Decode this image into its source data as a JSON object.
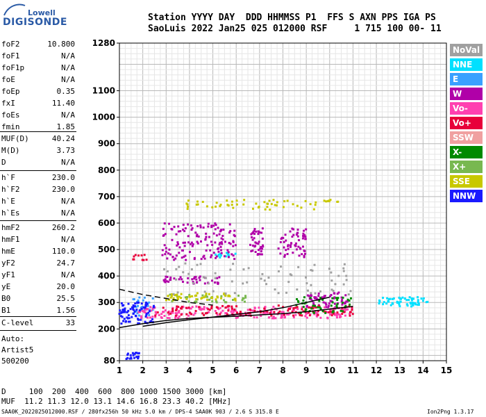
{
  "logo": {
    "top": "Lowell",
    "main": "DIGISONDE"
  },
  "header": {
    "line1": "Station YYYY DAY  DDD HHMMSS P1  FFS S AXN PPS IGA PS",
    "line2": "SaoLuis 2022 Jan25 025 012000 RSF     1 715 100 00- 11"
  },
  "params_1": [
    {
      "k": "foF2",
      "v": "10.800"
    },
    {
      "k": "foF1",
      "v": "N/A"
    },
    {
      "k": "foF1p",
      "v": "N/A"
    },
    {
      "k": "foE",
      "v": "N/A"
    },
    {
      "k": "foEp",
      "v": "0.35"
    },
    {
      "k": "fxI",
      "v": "11.40"
    },
    {
      "k": "foEs",
      "v": "N/A"
    },
    {
      "k": "fmin",
      "v": "1.85"
    }
  ],
  "params_2": [
    {
      "k": "MUF(D)",
      "v": "40.24"
    },
    {
      "k": "M(D)",
      "v": "3.73"
    },
    {
      "k": "D",
      "v": "N/A"
    }
  ],
  "params_3": [
    {
      "k": "h`F",
      "v": "230.0"
    },
    {
      "k": "h`F2",
      "v": "230.0"
    },
    {
      "k": "h`E",
      "v": "N/A"
    },
    {
      "k": "h`Es",
      "v": "N/A"
    }
  ],
  "params_4": [
    {
      "k": "hmF2",
      "v": "260.2"
    },
    {
      "k": "hmF1",
      "v": "N/A"
    },
    {
      "k": "hmE",
      "v": "110.0"
    },
    {
      "k": "yF2",
      "v": "24.7"
    },
    {
      "k": "yF1",
      "v": "N/A"
    },
    {
      "k": "yE",
      "v": "20.0"
    },
    {
      "k": "B0",
      "v": "25.5"
    },
    {
      "k": "B1",
      "v": "1.56"
    }
  ],
  "clevel": {
    "k": "C-level",
    "v": "33"
  },
  "auto": {
    "l1": "Auto:",
    "l2": "Artist5",
    "l3": "500200"
  },
  "legend": [
    {
      "label": "NoVal",
      "color": "#a0a0a0"
    },
    {
      "label": "NNE",
      "color": "#00e0ff"
    },
    {
      "label": "E",
      "color": "#3aa0ff"
    },
    {
      "label": "W",
      "color": "#b000a8"
    },
    {
      "label": "Vo-",
      "color": "#ff40b0"
    },
    {
      "label": "Vo+",
      "color": "#e8003a"
    },
    {
      "label": "SSW",
      "color": "#f0a0a0"
    },
    {
      "label": "X-",
      "color": "#008a00"
    },
    {
      "label": "X+",
      "color": "#78b850"
    },
    {
      "label": "SSE",
      "color": "#c8c800"
    },
    {
      "label": "NNW",
      "color": "#1a1aff"
    }
  ],
  "bottom": {
    "row1": "D     100  200  400  600  800 1000 1500 3000 [km]",
    "row2": "MUF  11.2 11.3 12.0 13.1 14.6 16.8 23.3 40.2 [MHz]"
  },
  "footer": {
    "left": "SAA0K_2022025012000.RSF / 280fx256h 50 kHz 5.0 km / DPS-4 SAA0K 903 / 2.6 S 315.8 E",
    "right": "Ion2Png 1.3.17"
  },
  "chart_data": {
    "type": "scatter",
    "title": "",
    "xlabel": "",
    "ylabel": "",
    "xlim": [
      1,
      15
    ],
    "ylim": [
      80,
      1280
    ],
    "x_ticks": [
      1,
      2,
      3,
      4,
      5,
      6,
      7,
      8,
      9,
      10,
      11,
      12,
      13,
      14,
      15
    ],
    "y_ticks": [
      80,
      200,
      300,
      400,
      500,
      600,
      700,
      800,
      900,
      1000,
      1100,
      1280
    ],
    "grid": true,
    "legend_position": "right",
    "series": [
      {
        "name": "NNE",
        "color": "#00e0ff",
        "clusters": [
          {
            "x": [
              12.1,
              14.2
            ],
            "y": [
              285,
              320
            ],
            "n": 60
          },
          {
            "x": [
              5.0,
              6.0
            ],
            "y": [
              470,
              490
            ],
            "n": 14
          }
        ]
      },
      {
        "name": "E",
        "color": "#3aa0ff",
        "clusters": [
          {
            "x": [
              1.5,
              2.5
            ],
            "y": [
              250,
              320
            ],
            "n": 30
          }
        ]
      },
      {
        "name": "W",
        "color": "#b000a8",
        "clusters": [
          {
            "x": [
              2.8,
              6.0
            ],
            "y": [
              460,
              600
            ],
            "n": 140
          },
          {
            "x": [
              6.6,
              7.2
            ],
            "y": [
              480,
              580
            ],
            "n": 40
          },
          {
            "x": [
              7.8,
              9.0
            ],
            "y": [
              470,
              580
            ],
            "n": 60
          },
          {
            "x": [
              2.9,
              5.5
            ],
            "y": [
              370,
              400
            ],
            "n": 40
          },
          {
            "x": [
              9.0,
              10.8
            ],
            "y": [
              280,
              340
            ],
            "n": 60
          }
        ]
      },
      {
        "name": "Vo-",
        "color": "#ff40b0",
        "clusters": [
          {
            "x": [
              1.8,
              11.0
            ],
            "y": [
              240,
              285
            ],
            "n": 220
          }
        ]
      },
      {
        "name": "Vo+",
        "color": "#e8003a",
        "clusters": [
          {
            "x": [
              2.5,
              11.0
            ],
            "y": [
              250,
              290
            ],
            "n": 120
          },
          {
            "x": [
              1.5,
              2.2
            ],
            "y": [
              460,
              480
            ],
            "n": 10
          }
        ]
      },
      {
        "name": "X-",
        "color": "#008a00",
        "clusters": [
          {
            "x": [
              8.5,
              11.0
            ],
            "y": [
              260,
              320
            ],
            "n": 50
          }
        ]
      },
      {
        "name": "X+",
        "color": "#78b850",
        "clusters": [
          {
            "x": [
              3.0,
              6.5
            ],
            "y": [
              300,
              330
            ],
            "n": 40
          }
        ]
      },
      {
        "name": "SSE",
        "color": "#c8c800",
        "clusters": [
          {
            "x": [
              3.8,
              10.5
            ],
            "y": [
              650,
              690
            ],
            "n": 60
          },
          {
            "x": [
              3.0,
              6.0
            ],
            "y": [
              305,
              335
            ],
            "n": 50
          }
        ]
      },
      {
        "name": "NNW",
        "color": "#1a1aff",
        "clusters": [
          {
            "x": [
              1.0,
              2.5
            ],
            "y": [
              220,
              300
            ],
            "n": 80
          },
          {
            "x": [
              1.3,
              1.9
            ],
            "y": [
              85,
              110
            ],
            "n": 20
          }
        ]
      },
      {
        "name": "NoVal",
        "color": "#a0a0a0",
        "clusters": [
          {
            "x": [
              2.8,
              11.0
            ],
            "y": [
              330,
              450
            ],
            "n": 70
          }
        ]
      }
    ],
    "traces": [
      {
        "name": "O-trace",
        "style": "solid",
        "points": [
          [
            1,
            205
          ],
          [
            2,
            220
          ],
          [
            3,
            232
          ],
          [
            4,
            240
          ],
          [
            5,
            244
          ],
          [
            6,
            248
          ],
          [
            7,
            253
          ],
          [
            8,
            258
          ],
          [
            9,
            265
          ],
          [
            10,
            275
          ],
          [
            11,
            285
          ]
        ]
      },
      {
        "name": "X-trace",
        "style": "solid",
        "points": [
          [
            2,
            210
          ],
          [
            3,
            224
          ],
          [
            4,
            235
          ],
          [
            5,
            245
          ],
          [
            6,
            255
          ],
          [
            7,
            265
          ],
          [
            8,
            280
          ],
          [
            9,
            300
          ],
          [
            10,
            320
          ]
        ]
      },
      {
        "name": "upper-trace",
        "style": "dashed",
        "points": [
          [
            1,
            350
          ],
          [
            2,
            330
          ],
          [
            3,
            315
          ],
          [
            4,
            300
          ],
          [
            5,
            290
          ]
        ]
      }
    ]
  }
}
